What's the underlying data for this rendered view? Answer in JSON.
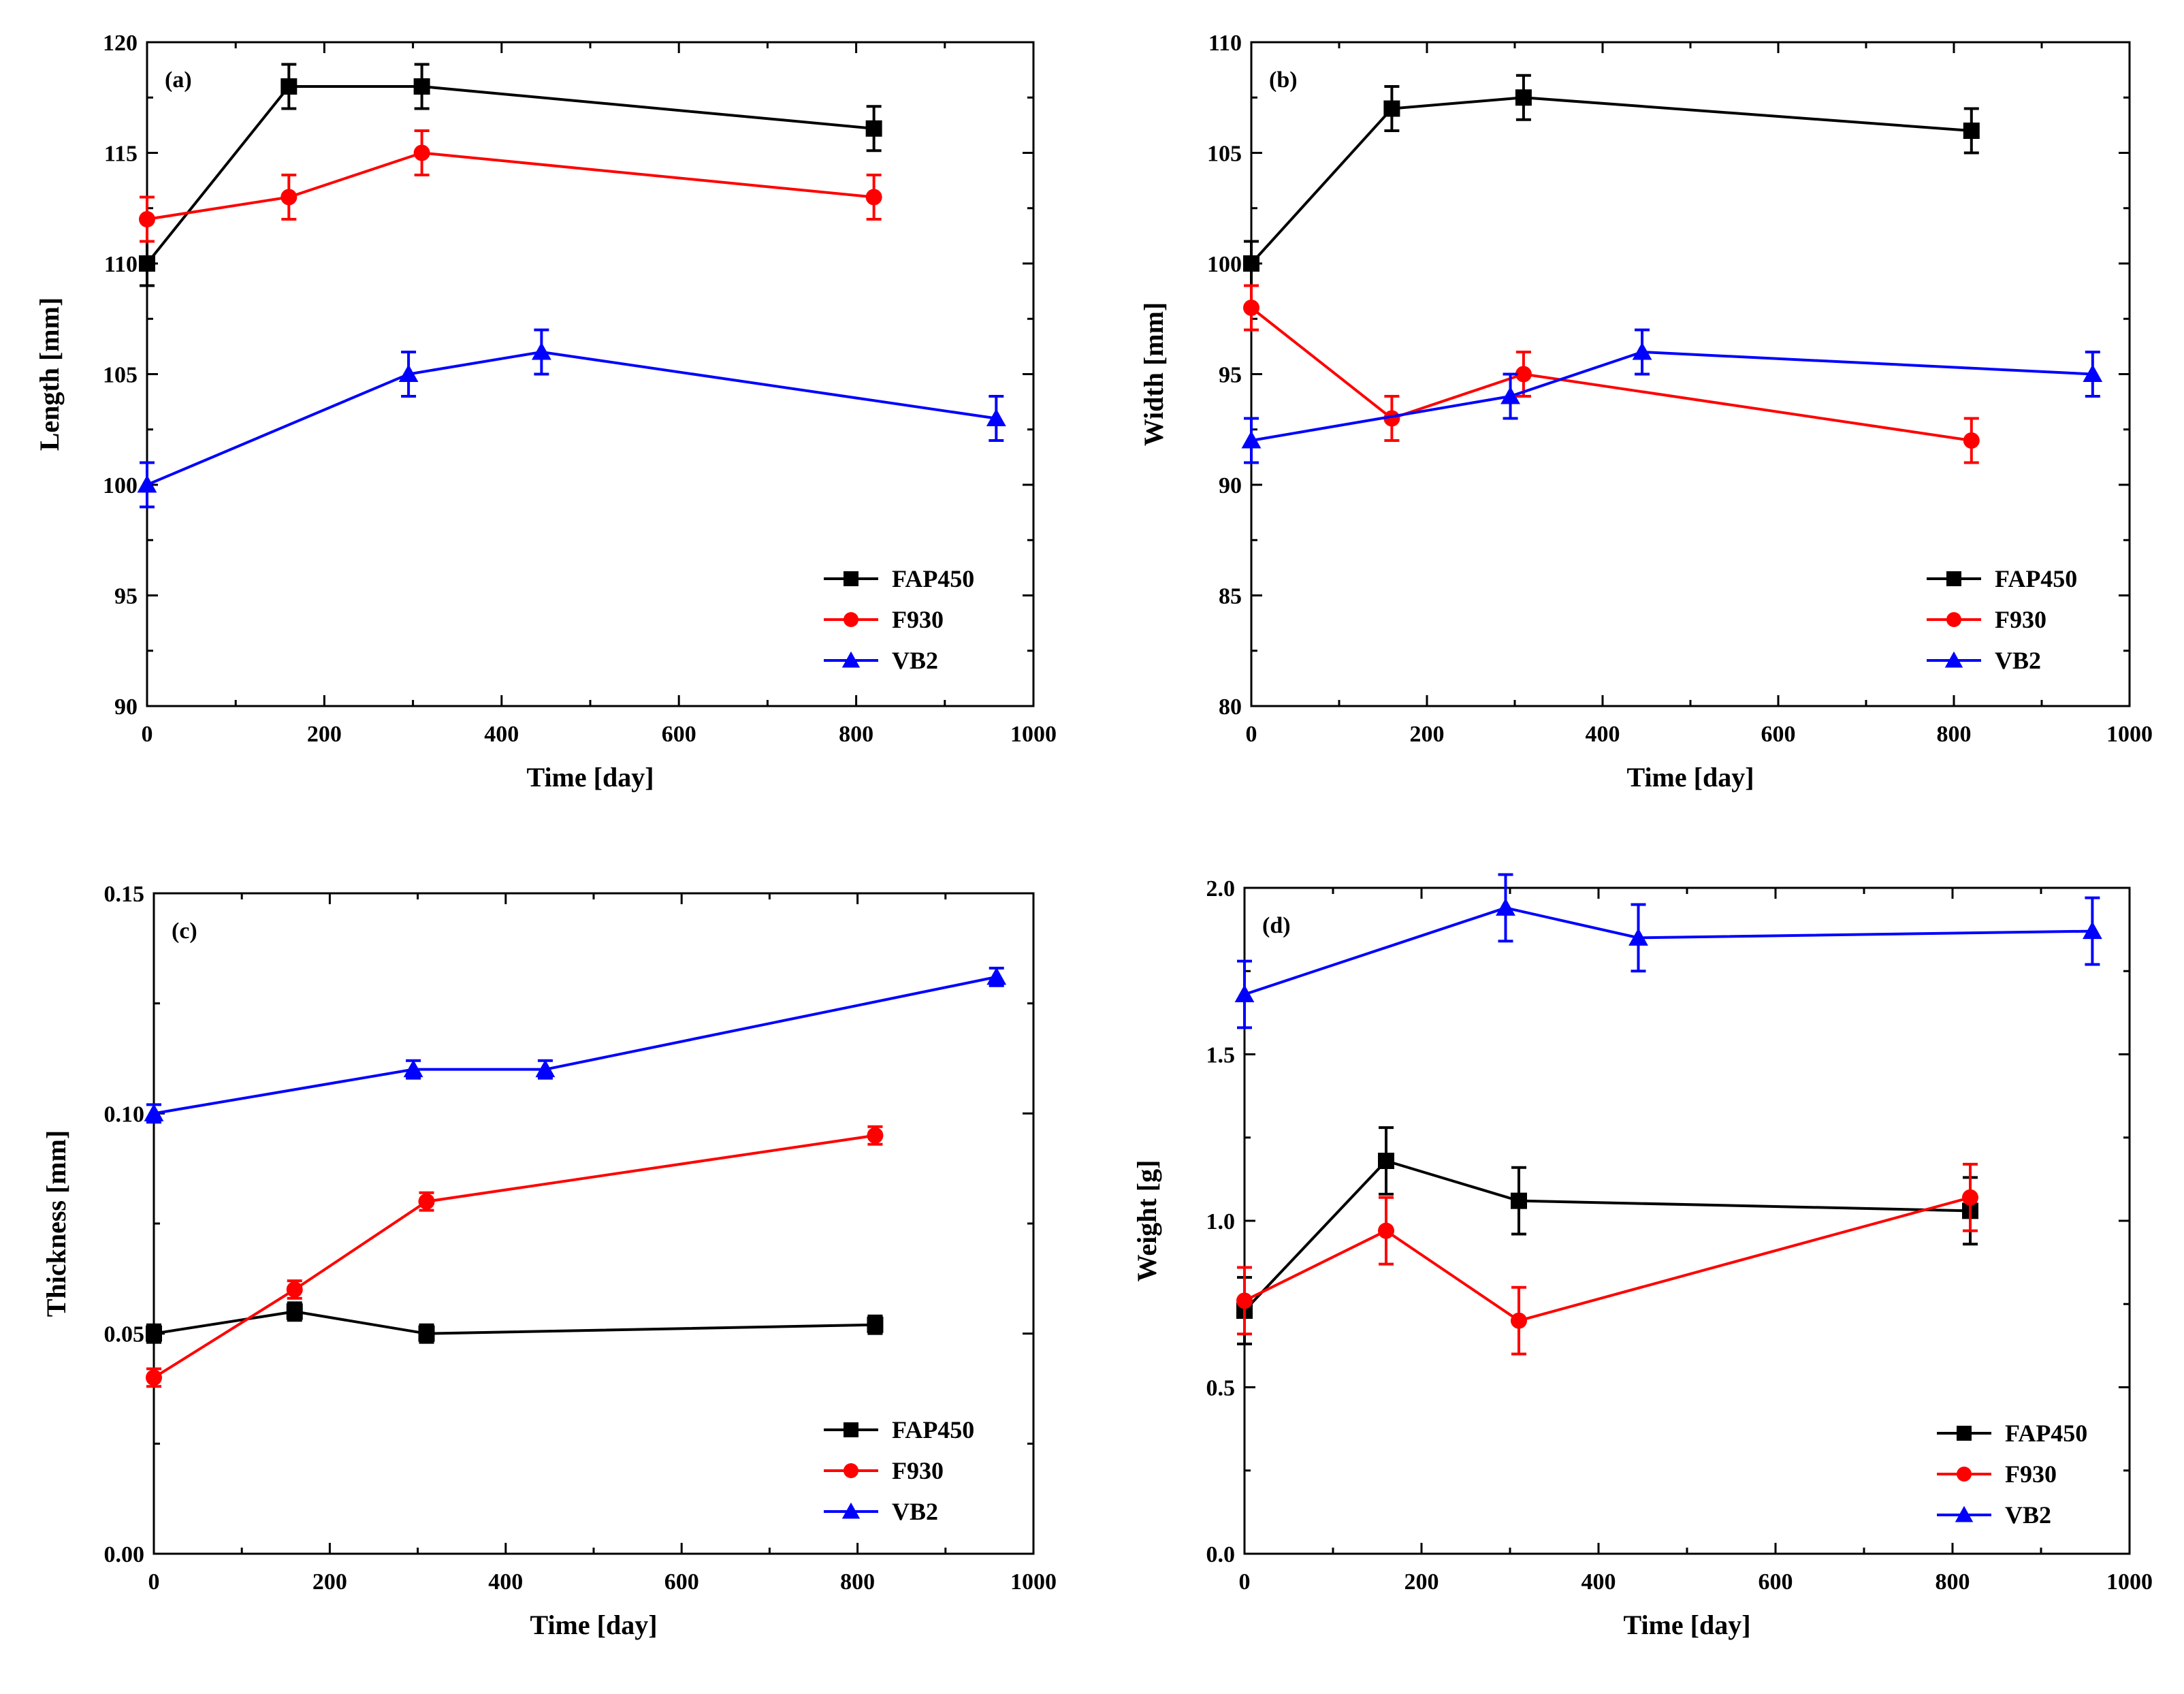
{
  "chart_data": [
    {
      "type": "line",
      "panel_label": "(a)",
      "xlabel": "Time [day]",
      "ylabel": "Length [mm]",
      "xlim": [
        0,
        1000
      ],
      "ylim": [
        90,
        120
      ],
      "xticks": [
        0,
        200,
        400,
        600,
        800,
        1000
      ],
      "yticks": [
        90,
        95,
        100,
        105,
        110,
        115,
        120
      ],
      "legend_position": "bottom-right",
      "series": [
        {
          "name": "FAP450",
          "color": "#000000",
          "marker": "square",
          "x": [
            0,
            160,
            310,
            820
          ],
          "y": [
            110,
            118,
            118,
            116.1
          ],
          "err": [
            1,
            1,
            1,
            1
          ]
        },
        {
          "name": "F930",
          "color": "#ff0000",
          "marker": "circle",
          "x": [
            0,
            160,
            310,
            820
          ],
          "y": [
            112,
            113,
            115,
            113
          ],
          "err": [
            1,
            1,
            1,
            1
          ]
        },
        {
          "name": "VB2",
          "color": "#0000ff",
          "marker": "triangle",
          "x": [
            0,
            295,
            445,
            958
          ],
          "y": [
            100,
            105,
            106,
            103
          ],
          "err": [
            1,
            1,
            1,
            1
          ]
        }
      ]
    },
    {
      "type": "line",
      "panel_label": "(b)",
      "xlabel": "Time [day]",
      "ylabel": "Width [mm]",
      "xlim": [
        0,
        1000
      ],
      "ylim": [
        80,
        110
      ],
      "xticks": [
        0,
        200,
        400,
        600,
        800,
        1000
      ],
      "yticks": [
        80,
        85,
        90,
        95,
        100,
        105,
        110
      ],
      "legend_position": "bottom-right",
      "series": [
        {
          "name": "FAP450",
          "color": "#000000",
          "marker": "square",
          "x": [
            0,
            160,
            310,
            820
          ],
          "y": [
            100,
            107,
            107.5,
            106
          ],
          "err": [
            1,
            1,
            1,
            1
          ]
        },
        {
          "name": "F930",
          "color": "#ff0000",
          "marker": "circle",
          "x": [
            0,
            160,
            310,
            820
          ],
          "y": [
            98,
            93,
            95,
            92
          ],
          "err": [
            1,
            1,
            1,
            1
          ]
        },
        {
          "name": "VB2",
          "color": "#0000ff",
          "marker": "triangle",
          "x": [
            0,
            295,
            445,
            958
          ],
          "y": [
            92,
            94,
            96,
            95
          ],
          "err": [
            1,
            1,
            1,
            1
          ]
        }
      ]
    },
    {
      "type": "line",
      "panel_label": "(c)",
      "xlabel": "Time [day]",
      "ylabel": "Thickness [mm]",
      "xlim": [
        0,
        1000
      ],
      "ylim": [
        0,
        0.15
      ],
      "xticks": [
        0,
        200,
        400,
        600,
        800,
        1000
      ],
      "yticks": [
        "0.00",
        "0.05",
        "0.10",
        "0.15"
      ],
      "legend_position": "bottom-right",
      "series": [
        {
          "name": "FAP450",
          "color": "#000000",
          "marker": "square",
          "x": [
            0,
            160,
            310,
            820
          ],
          "y": [
            0.05,
            0.055,
            0.05,
            0.052
          ],
          "err": [
            0.002,
            0.002,
            0.002,
            0.002
          ]
        },
        {
          "name": "F930",
          "color": "#ff0000",
          "marker": "circle",
          "x": [
            0,
            160,
            310,
            820
          ],
          "y": [
            0.04,
            0.06,
            0.08,
            0.095
          ],
          "err": [
            0.002,
            0.002,
            0.002,
            0.002
          ]
        },
        {
          "name": "VB2",
          "color": "#0000ff",
          "marker": "triangle",
          "x": [
            0,
            295,
            445,
            958
          ],
          "y": [
            0.1,
            0.11,
            0.11,
            0.131
          ],
          "err": [
            0.002,
            0.002,
            0.002,
            0.002
          ]
        }
      ]
    },
    {
      "type": "line",
      "panel_label": "(d)",
      "xlabel": "Time [day]",
      "ylabel": "Weight [g]",
      "xlim": [
        0,
        1000
      ],
      "ylim": [
        0,
        2
      ],
      "xticks": [
        0,
        200,
        400,
        600,
        800,
        1000
      ],
      "yticks": [
        "0.0",
        "0.5",
        "1.0",
        "1.5",
        "2.0"
      ],
      "legend_position": "bottom-right",
      "series": [
        {
          "name": "FAP450",
          "color": "#000000",
          "marker": "square",
          "x": [
            0,
            160,
            310,
            820
          ],
          "y": [
            0.73,
            1.18,
            1.06,
            1.03
          ],
          "err": [
            0.1,
            0.1,
            0.1,
            0.1
          ]
        },
        {
          "name": "F930",
          "color": "#ff0000",
          "marker": "circle",
          "x": [
            0,
            160,
            310,
            820
          ],
          "y": [
            0.76,
            0.97,
            0.7,
            1.07
          ],
          "err": [
            0.1,
            0.1,
            0.1,
            0.1
          ]
        },
        {
          "name": "VB2",
          "color": "#0000ff",
          "marker": "triangle",
          "x": [
            0,
            295,
            445,
            958
          ],
          "y": [
            1.68,
            1.94,
            1.85,
            1.87
          ],
          "err": [
            0.1,
            0.1,
            0.1,
            0.1
          ]
        }
      ]
    }
  ]
}
